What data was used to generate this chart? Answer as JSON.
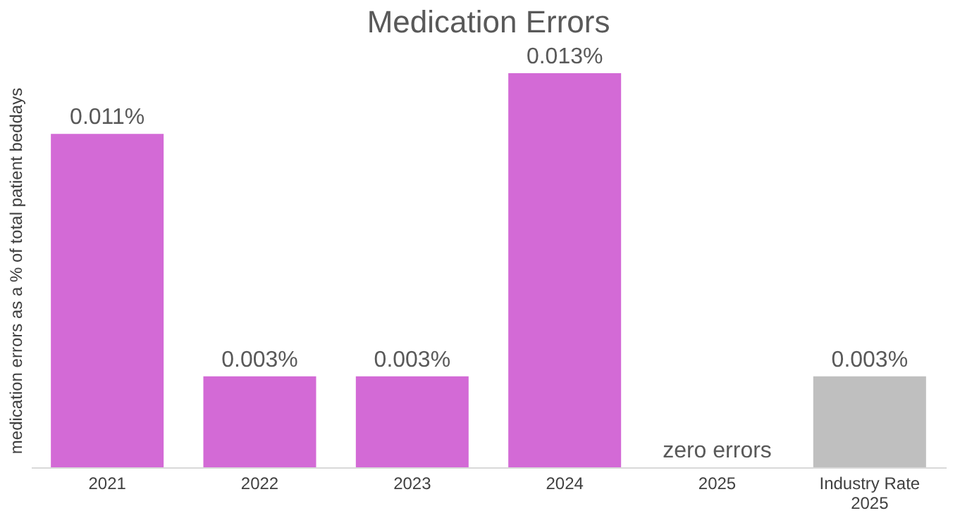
{
  "chart_data": {
    "type": "bar",
    "title": "Medication Errors",
    "ylabel": "medication errors as a % of total patient beddays",
    "categories": [
      "2021",
      "2022",
      "2023",
      "2024",
      "2025",
      "Industry Rate\n2025"
    ],
    "values": [
      0.011,
      0.003,
      0.003,
      0.013,
      0,
      0.003
    ],
    "colors": [
      "#d36ad6",
      "#d36ad6",
      "#d36ad6",
      "#d36ad6",
      "#d36ad6",
      "#bfbfbf"
    ],
    "value_labels": [
      "0.011%",
      "0.003%",
      "0.003%",
      "0.013%",
      "zero errors",
      "0.003%"
    ]
  }
}
